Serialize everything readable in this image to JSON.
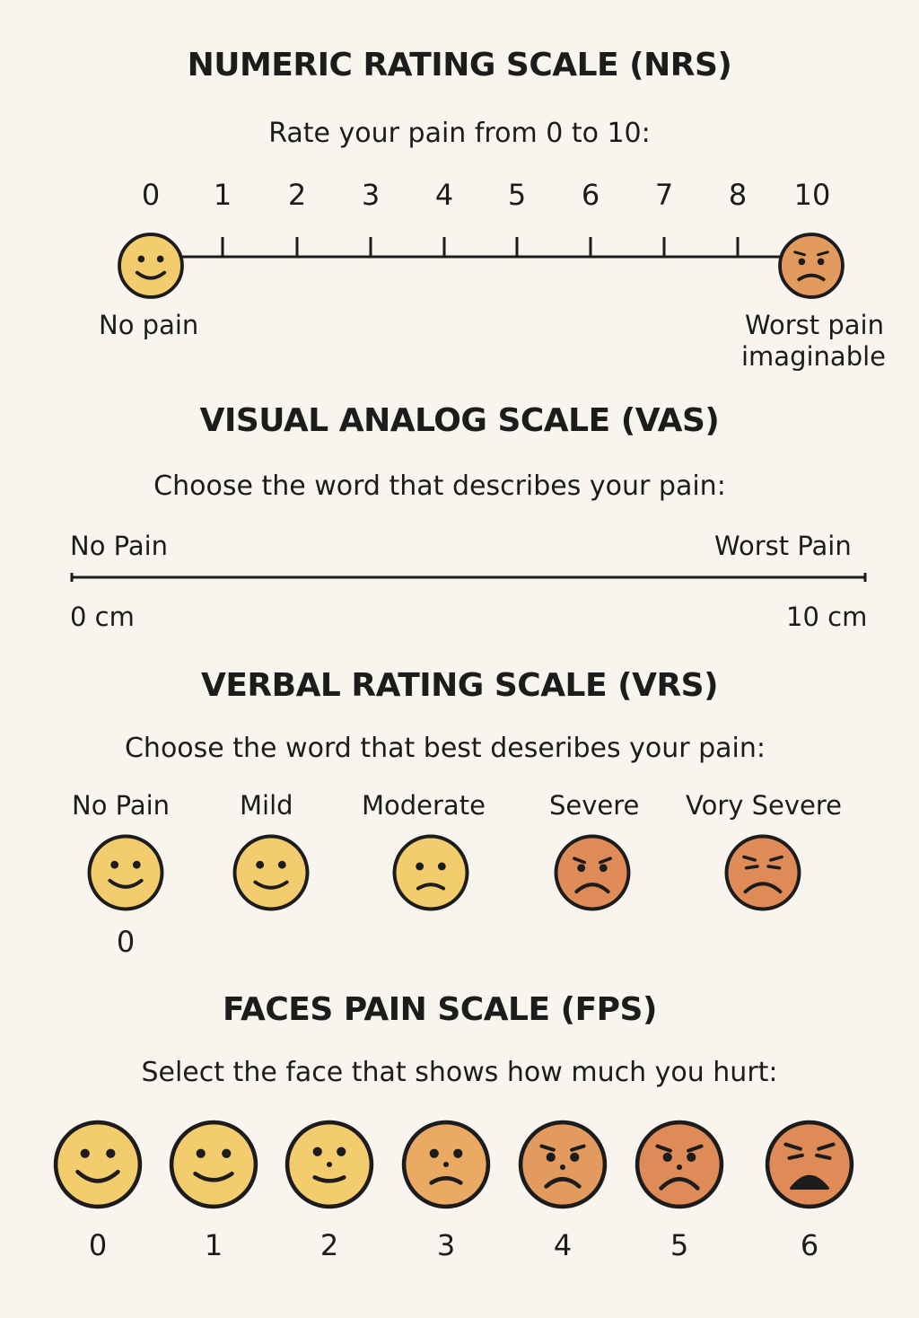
{
  "nrs": {
    "title": "NUMERIC RATING SCALE (NRS)",
    "prompt": "Rate your pain from 0 to 10:",
    "ticks": [
      "0",
      "1",
      "2",
      "3",
      "4",
      "5",
      "6",
      "7",
      "8",
      "10"
    ],
    "left_label": "No pain",
    "right_label_line1": "Worst pain",
    "right_label_line2": "imaginable",
    "left_face": "smiling-face-icon",
    "right_face": "worried-face-icon"
  },
  "vas": {
    "title": "VISUAL ANALOG SCALE (VAS)",
    "prompt": "Choose the word that describes your pain:",
    "left_label": "No Pain",
    "right_label": "Worst Pain",
    "left_value": "0 cm",
    "right_value": "10 cm"
  },
  "vrs": {
    "title": "VERBAL RATING SCALE (VRS)",
    "prompt": "Choose the word that best deseribes your pain:",
    "options": [
      {
        "label": "No Pain",
        "icon": "smiling-face-icon"
      },
      {
        "label": "Mild",
        "icon": "smiling-face-icon"
      },
      {
        "label": "Moderate",
        "icon": "frowning-face-icon"
      },
      {
        "label": "Severe",
        "icon": "sad-face-icon"
      },
      {
        "label": "Vory Severe",
        "icon": "crying-face-icon"
      }
    ],
    "first_value": "0"
  },
  "fps": {
    "title": "FACES PAIN SCALE (FPS)",
    "prompt": "Select the face that shows how much you hurt:",
    "faces": [
      {
        "value": "0",
        "icon": "happy-face-icon"
      },
      {
        "value": "1",
        "icon": "happy-face-icon"
      },
      {
        "value": "2",
        "icon": "slight-smile-face-icon"
      },
      {
        "value": "3",
        "icon": "frowning-face-icon"
      },
      {
        "value": "4",
        "icon": "sad-face-icon"
      },
      {
        "value": "5",
        "icon": "sad-face-icon"
      },
      {
        "value": "6",
        "icon": "distressed-face-icon"
      }
    ]
  },
  "colors": {
    "yellow": "#f3cd6d",
    "light_orange": "#eaaa63",
    "orange": "#e39a5f",
    "deep_orange": "#df8b58",
    "outline": "#1c1c1c",
    "background": "#f8f5ee"
  }
}
